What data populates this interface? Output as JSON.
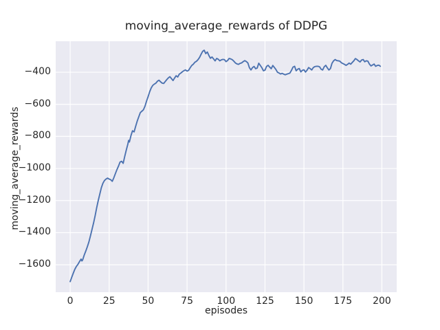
{
  "chart_data": {
    "type": "line",
    "title": "moving_average_rewards of DDPG",
    "xlabel": "episodes",
    "ylabel": "moving_average_rewards",
    "x_ticks": [
      0,
      25,
      50,
      75,
      100,
      125,
      150,
      175,
      200
    ],
    "x_tick_labels": [
      "0",
      "25",
      "50",
      "75",
      "100",
      "125",
      "150",
      "175",
      "200"
    ],
    "y_ticks": [
      -400,
      -600,
      -800,
      -1000,
      -1200,
      -1400,
      -1600
    ],
    "y_tick_labels": [
      "−400",
      "−600",
      "−800",
      "−1000",
      "−1200",
      "−1400",
      "−1600"
    ],
    "xlim": [
      -9.3,
      209.5
    ],
    "ylim": [
      -1771,
      -207
    ],
    "grid": true,
    "legend_position": "none",
    "colors": {
      "line": "#4c72b0",
      "plot_background": "#eaeaf2",
      "grid": "#ffffff",
      "text": "#262626",
      "figure_background": "#ffffff"
    },
    "series": [
      {
        "name": "moving_average_rewards",
        "points": [
          [
            0,
            -1705
          ],
          [
            1,
            -1678
          ],
          [
            2,
            -1652
          ],
          [
            3,
            -1628
          ],
          [
            4,
            -1610
          ],
          [
            5,
            -1597
          ],
          [
            6,
            -1580
          ],
          [
            7,
            -1565
          ],
          [
            7.5,
            -1576
          ],
          [
            8,
            -1570
          ],
          [
            9,
            -1540
          ],
          [
            10,
            -1515
          ],
          [
            11,
            -1488
          ],
          [
            12,
            -1458
          ],
          [
            13,
            -1420
          ],
          [
            14,
            -1380
          ],
          [
            15,
            -1340
          ],
          [
            16,
            -1295
          ],
          [
            17,
            -1245
          ],
          [
            18,
            -1200
          ],
          [
            19,
            -1160
          ],
          [
            20,
            -1120
          ],
          [
            21,
            -1092
          ],
          [
            22,
            -1075
          ],
          [
            23,
            -1066
          ],
          [
            24,
            -1060
          ],
          [
            25,
            -1066
          ],
          [
            26,
            -1070
          ],
          [
            27,
            -1080
          ],
          [
            28,
            -1058
          ],
          [
            29,
            -1032
          ],
          [
            30,
            -1007
          ],
          [
            31,
            -985
          ],
          [
            32,
            -960
          ],
          [
            33,
            -955
          ],
          [
            34,
            -968
          ],
          [
            35,
            -925
          ],
          [
            36,
            -885
          ],
          [
            37,
            -848
          ],
          [
            37.5,
            -825
          ],
          [
            38,
            -835
          ],
          [
            39,
            -795
          ],
          [
            40,
            -765
          ],
          [
            41,
            -772
          ],
          [
            42,
            -738
          ],
          [
            43,
            -705
          ],
          [
            44,
            -678
          ],
          [
            45,
            -652
          ],
          [
            46,
            -643
          ],
          [
            47,
            -634
          ],
          [
            48,
            -612
          ],
          [
            49,
            -580
          ],
          [
            50,
            -552
          ],
          [
            51,
            -522
          ],
          [
            52,
            -498
          ],
          [
            53,
            -482
          ],
          [
            54,
            -474
          ],
          [
            55,
            -468
          ],
          [
            56,
            -456
          ],
          [
            57,
            -450
          ],
          [
            58,
            -460
          ],
          [
            59,
            -468
          ],
          [
            60,
            -470
          ],
          [
            61,
            -458
          ],
          [
            62,
            -446
          ],
          [
            63,
            -435
          ],
          [
            64,
            -428
          ],
          [
            65,
            -440
          ],
          [
            66,
            -452
          ],
          [
            67,
            -436
          ],
          [
            68,
            -422
          ],
          [
            69,
            -430
          ],
          [
            70,
            -412
          ],
          [
            71,
            -405
          ],
          [
            72,
            -397
          ],
          [
            73,
            -390
          ],
          [
            74,
            -386
          ],
          [
            75,
            -393
          ],
          [
            76,
            -388
          ],
          [
            77,
            -372
          ],
          [
            78,
            -358
          ],
          [
            79,
            -350
          ],
          [
            80,
            -338
          ],
          [
            81,
            -332
          ],
          [
            82,
            -322
          ],
          [
            83,
            -308
          ],
          [
            84,
            -288
          ],
          [
            85,
            -270
          ],
          [
            86,
            -263
          ],
          [
            87,
            -284
          ],
          [
            88,
            -274
          ],
          [
            89,
            -296
          ],
          [
            90,
            -313
          ],
          [
            91,
            -305
          ],
          [
            92,
            -317
          ],
          [
            93,
            -329
          ],
          [
            94,
            -314
          ],
          [
            95,
            -319
          ],
          [
            96,
            -329
          ],
          [
            97,
            -323
          ],
          [
            98,
            -320
          ],
          [
            99,
            -322
          ],
          [
            100,
            -334
          ],
          [
            101,
            -327
          ],
          [
            102,
            -314
          ],
          [
            103,
            -317
          ],
          [
            104,
            -322
          ],
          [
            105,
            -331
          ],
          [
            106,
            -342
          ],
          [
            107,
            -348
          ],
          [
            108,
            -351
          ],
          [
            109,
            -345
          ],
          [
            110,
            -342
          ],
          [
            111,
            -334
          ],
          [
            112,
            -328
          ],
          [
            113,
            -333
          ],
          [
            114,
            -342
          ],
          [
            115,
            -372
          ],
          [
            116,
            -386
          ],
          [
            117,
            -371
          ],
          [
            118,
            -364
          ],
          [
            119,
            -378
          ],
          [
            120,
            -374
          ],
          [
            121,
            -344
          ],
          [
            122,
            -358
          ],
          [
            123,
            -372
          ],
          [
            124,
            -391
          ],
          [
            125,
            -387
          ],
          [
            126,
            -364
          ],
          [
            127,
            -357
          ],
          [
            128,
            -368
          ],
          [
            129,
            -378
          ],
          [
            130,
            -358
          ],
          [
            131,
            -370
          ],
          [
            132,
            -383
          ],
          [
            133,
            -400
          ],
          [
            134,
            -405
          ],
          [
            135,
            -411
          ],
          [
            136,
            -407
          ],
          [
            137,
            -412
          ],
          [
            138,
            -416
          ],
          [
            139,
            -412
          ],
          [
            140,
            -409
          ],
          [
            141,
            -405
          ],
          [
            142,
            -388
          ],
          [
            143,
            -368
          ],
          [
            144,
            -363
          ],
          [
            145,
            -391
          ],
          [
            146,
            -381
          ],
          [
            147,
            -377
          ],
          [
            148,
            -398
          ],
          [
            149,
            -388
          ],
          [
            150,
            -385
          ],
          [
            151,
            -399
          ],
          [
            152,
            -387
          ],
          [
            153,
            -371
          ],
          [
            154,
            -378
          ],
          [
            155,
            -386
          ],
          [
            156,
            -371
          ],
          [
            157,
            -365
          ],
          [
            158,
            -363
          ],
          [
            159,
            -363
          ],
          [
            160,
            -366
          ],
          [
            161,
            -381
          ],
          [
            162,
            -386
          ],
          [
            163,
            -366
          ],
          [
            164,
            -357
          ],
          [
            165,
            -373
          ],
          [
            166,
            -386
          ],
          [
            167,
            -377
          ],
          [
            168,
            -344
          ],
          [
            169,
            -329
          ],
          [
            170,
            -321
          ],
          [
            171,
            -327
          ],
          [
            172,
            -329
          ],
          [
            173,
            -331
          ],
          [
            174,
            -341
          ],
          [
            175,
            -346
          ],
          [
            176,
            -351
          ],
          [
            177,
            -357
          ],
          [
            178,
            -351
          ],
          [
            179,
            -343
          ],
          [
            180,
            -350
          ],
          [
            181,
            -339
          ],
          [
            182,
            -329
          ],
          [
            183,
            -315
          ],
          [
            184,
            -321
          ],
          [
            185,
            -329
          ],
          [
            186,
            -336
          ],
          [
            187,
            -324
          ],
          [
            188,
            -321
          ],
          [
            189,
            -335
          ],
          [
            190,
            -329
          ],
          [
            191,
            -331
          ],
          [
            192,
            -349
          ],
          [
            193,
            -361
          ],
          [
            194,
            -355
          ],
          [
            195,
            -349
          ],
          [
            196,
            -363
          ],
          [
            197,
            -358
          ],
          [
            198,
            -356
          ],
          [
            199,
            -363
          ]
        ]
      }
    ]
  }
}
